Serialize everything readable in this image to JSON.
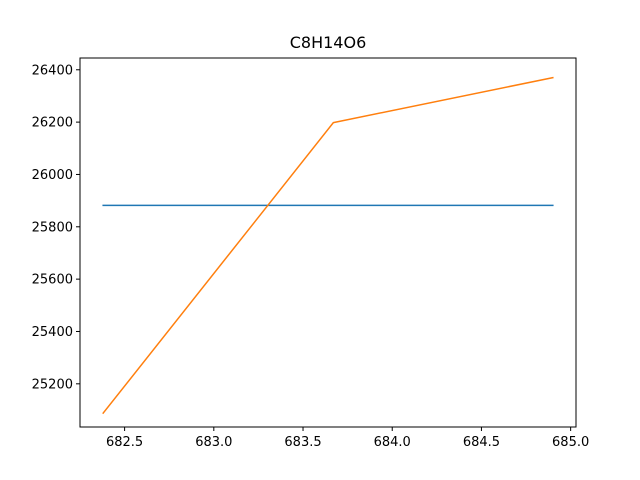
{
  "chart_data": {
    "type": "line",
    "title": "C8H14O6",
    "xlabel": "",
    "ylabel": "",
    "xlim": [
      682.25,
      685.03
    ],
    "ylim": [
      25035,
      26445
    ],
    "x_ticks": [
      682.5,
      683.0,
      683.5,
      684.0,
      684.5,
      685.0
    ],
    "x_tick_labels": [
      "682.5",
      "683.0",
      "683.5",
      "684.0",
      "684.5",
      "685.0"
    ],
    "y_ticks": [
      25200,
      25400,
      25600,
      25800,
      26000,
      26200,
      26400
    ],
    "y_tick_labels": [
      "25200",
      "25400",
      "25600",
      "25800",
      "26000",
      "26200",
      "26400"
    ],
    "grid": false,
    "legend": "none",
    "series": [
      {
        "color": "#1f77b4",
        "x": [
          682.38,
          684.9
        ],
        "y": [
          25882,
          25882
        ]
      },
      {
        "color": "#ff7f0e",
        "x": [
          682.38,
          683.67,
          684.9
        ],
        "y": [
          25088,
          26198,
          26370
        ]
      }
    ]
  }
}
